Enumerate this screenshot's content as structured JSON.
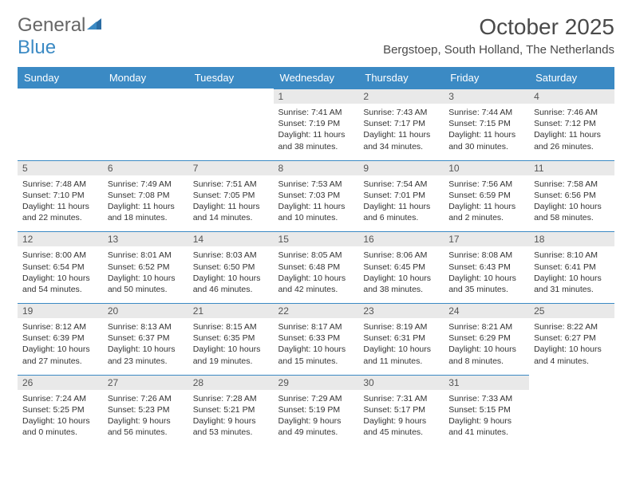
{
  "logo": {
    "text1": "General",
    "text2": "Blue"
  },
  "header": {
    "month_title": "October 2025",
    "location": "Bergstoep, South Holland, The Netherlands"
  },
  "colors": {
    "accent": "#3b8ac4",
    "header_text": "#ffffff",
    "daybar_bg": "#e9e9e9",
    "text": "#333333",
    "background": "#ffffff"
  },
  "calendar": {
    "day_headers": [
      "Sunday",
      "Monday",
      "Tuesday",
      "Wednesday",
      "Thursday",
      "Friday",
      "Saturday"
    ],
    "weeks": [
      [
        null,
        null,
        null,
        {
          "d": "1",
          "sr": "Sunrise: 7:41 AM",
          "ss": "Sunset: 7:19 PM",
          "dl1": "Daylight: 11 hours",
          "dl2": "and 38 minutes."
        },
        {
          "d": "2",
          "sr": "Sunrise: 7:43 AM",
          "ss": "Sunset: 7:17 PM",
          "dl1": "Daylight: 11 hours",
          "dl2": "and 34 minutes."
        },
        {
          "d": "3",
          "sr": "Sunrise: 7:44 AM",
          "ss": "Sunset: 7:15 PM",
          "dl1": "Daylight: 11 hours",
          "dl2": "and 30 minutes."
        },
        {
          "d": "4",
          "sr": "Sunrise: 7:46 AM",
          "ss": "Sunset: 7:12 PM",
          "dl1": "Daylight: 11 hours",
          "dl2": "and 26 minutes."
        }
      ],
      [
        {
          "d": "5",
          "sr": "Sunrise: 7:48 AM",
          "ss": "Sunset: 7:10 PM",
          "dl1": "Daylight: 11 hours",
          "dl2": "and 22 minutes."
        },
        {
          "d": "6",
          "sr": "Sunrise: 7:49 AM",
          "ss": "Sunset: 7:08 PM",
          "dl1": "Daylight: 11 hours",
          "dl2": "and 18 minutes."
        },
        {
          "d": "7",
          "sr": "Sunrise: 7:51 AM",
          "ss": "Sunset: 7:05 PM",
          "dl1": "Daylight: 11 hours",
          "dl2": "and 14 minutes."
        },
        {
          "d": "8",
          "sr": "Sunrise: 7:53 AM",
          "ss": "Sunset: 7:03 PM",
          "dl1": "Daylight: 11 hours",
          "dl2": "and 10 minutes."
        },
        {
          "d": "9",
          "sr": "Sunrise: 7:54 AM",
          "ss": "Sunset: 7:01 PM",
          "dl1": "Daylight: 11 hours",
          "dl2": "and 6 minutes."
        },
        {
          "d": "10",
          "sr": "Sunrise: 7:56 AM",
          "ss": "Sunset: 6:59 PM",
          "dl1": "Daylight: 11 hours",
          "dl2": "and 2 minutes."
        },
        {
          "d": "11",
          "sr": "Sunrise: 7:58 AM",
          "ss": "Sunset: 6:56 PM",
          "dl1": "Daylight: 10 hours",
          "dl2": "and 58 minutes."
        }
      ],
      [
        {
          "d": "12",
          "sr": "Sunrise: 8:00 AM",
          "ss": "Sunset: 6:54 PM",
          "dl1": "Daylight: 10 hours",
          "dl2": "and 54 minutes."
        },
        {
          "d": "13",
          "sr": "Sunrise: 8:01 AM",
          "ss": "Sunset: 6:52 PM",
          "dl1": "Daylight: 10 hours",
          "dl2": "and 50 minutes."
        },
        {
          "d": "14",
          "sr": "Sunrise: 8:03 AM",
          "ss": "Sunset: 6:50 PM",
          "dl1": "Daylight: 10 hours",
          "dl2": "and 46 minutes."
        },
        {
          "d": "15",
          "sr": "Sunrise: 8:05 AM",
          "ss": "Sunset: 6:48 PM",
          "dl1": "Daylight: 10 hours",
          "dl2": "and 42 minutes."
        },
        {
          "d": "16",
          "sr": "Sunrise: 8:06 AM",
          "ss": "Sunset: 6:45 PM",
          "dl1": "Daylight: 10 hours",
          "dl2": "and 38 minutes."
        },
        {
          "d": "17",
          "sr": "Sunrise: 8:08 AM",
          "ss": "Sunset: 6:43 PM",
          "dl1": "Daylight: 10 hours",
          "dl2": "and 35 minutes."
        },
        {
          "d": "18",
          "sr": "Sunrise: 8:10 AM",
          "ss": "Sunset: 6:41 PM",
          "dl1": "Daylight: 10 hours",
          "dl2": "and 31 minutes."
        }
      ],
      [
        {
          "d": "19",
          "sr": "Sunrise: 8:12 AM",
          "ss": "Sunset: 6:39 PM",
          "dl1": "Daylight: 10 hours",
          "dl2": "and 27 minutes."
        },
        {
          "d": "20",
          "sr": "Sunrise: 8:13 AM",
          "ss": "Sunset: 6:37 PM",
          "dl1": "Daylight: 10 hours",
          "dl2": "and 23 minutes."
        },
        {
          "d": "21",
          "sr": "Sunrise: 8:15 AM",
          "ss": "Sunset: 6:35 PM",
          "dl1": "Daylight: 10 hours",
          "dl2": "and 19 minutes."
        },
        {
          "d": "22",
          "sr": "Sunrise: 8:17 AM",
          "ss": "Sunset: 6:33 PM",
          "dl1": "Daylight: 10 hours",
          "dl2": "and 15 minutes."
        },
        {
          "d": "23",
          "sr": "Sunrise: 8:19 AM",
          "ss": "Sunset: 6:31 PM",
          "dl1": "Daylight: 10 hours",
          "dl2": "and 11 minutes."
        },
        {
          "d": "24",
          "sr": "Sunrise: 8:21 AM",
          "ss": "Sunset: 6:29 PM",
          "dl1": "Daylight: 10 hours",
          "dl2": "and 8 minutes."
        },
        {
          "d": "25",
          "sr": "Sunrise: 8:22 AM",
          "ss": "Sunset: 6:27 PM",
          "dl1": "Daylight: 10 hours",
          "dl2": "and 4 minutes."
        }
      ],
      [
        {
          "d": "26",
          "sr": "Sunrise: 7:24 AM",
          "ss": "Sunset: 5:25 PM",
          "dl1": "Daylight: 10 hours",
          "dl2": "and 0 minutes."
        },
        {
          "d": "27",
          "sr": "Sunrise: 7:26 AM",
          "ss": "Sunset: 5:23 PM",
          "dl1": "Daylight: 9 hours",
          "dl2": "and 56 minutes."
        },
        {
          "d": "28",
          "sr": "Sunrise: 7:28 AM",
          "ss": "Sunset: 5:21 PM",
          "dl1": "Daylight: 9 hours",
          "dl2": "and 53 minutes."
        },
        {
          "d": "29",
          "sr": "Sunrise: 7:29 AM",
          "ss": "Sunset: 5:19 PM",
          "dl1": "Daylight: 9 hours",
          "dl2": "and 49 minutes."
        },
        {
          "d": "30",
          "sr": "Sunrise: 7:31 AM",
          "ss": "Sunset: 5:17 PM",
          "dl1": "Daylight: 9 hours",
          "dl2": "and 45 minutes."
        },
        {
          "d": "31",
          "sr": "Sunrise: 7:33 AM",
          "ss": "Sunset: 5:15 PM",
          "dl1": "Daylight: 9 hours",
          "dl2": "and 41 minutes."
        },
        null
      ]
    ]
  }
}
